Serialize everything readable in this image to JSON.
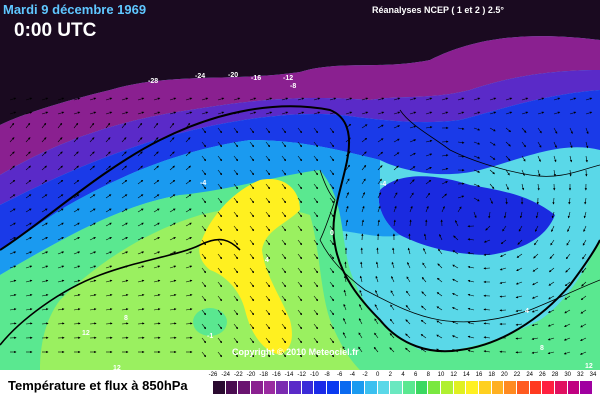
{
  "header": {
    "date": "Mardi 9 décembre 1969",
    "time": "0:00 UTC",
    "source": "Réanalyses NCEP ( 1 et 2 ) 2.5°"
  },
  "copyright": "Copyright © 2010 Meteociel.fr",
  "legend": {
    "title": "Température et flux à 850hPa",
    "ticks": [
      "-26",
      "-24",
      "-22",
      "-20",
      "-18",
      "-16",
      "-14",
      "-12",
      "-10",
      "-8",
      "-6",
      "-4",
      "-2",
      "0",
      "2",
      "4",
      "6",
      "8",
      "10",
      "12",
      "14",
      "16",
      "18",
      "20",
      "22",
      "24",
      "26",
      "28",
      "30",
      "32",
      "34"
    ],
    "colors": [
      "#2a0a30",
      "#4a0c50",
      "#6a1470",
      "#8a2090",
      "#9a2aa0",
      "#7a2ab0",
      "#5a2ac8",
      "#3a2ad8",
      "#1a2ae8",
      "#0a3af0",
      "#0a6af0",
      "#1a9af0",
      "#3ac0f0",
      "#5ad8e8",
      "#6ae8c0",
      "#5ae890",
      "#3ad860",
      "#7ae840",
      "#b0f030",
      "#e0f020",
      "#fff020",
      "#ffd020",
      "#ffb020",
      "#ff8a20",
      "#ff5a20",
      "#ff3a20",
      "#ff2040",
      "#e01060",
      "#c00080",
      "#a000a0"
    ]
  },
  "map_labels": [
    "-28",
    "-24",
    "-20",
    "-16",
    "-12",
    "-8",
    "-4",
    "-4",
    "0",
    "4",
    "8",
    "-1",
    "12",
    "12",
    "8",
    "4",
    "12"
  ],
  "colors": {
    "deep_purple": "#2a0a30",
    "purple": "#8a2090",
    "blue": "#0a3af0",
    "cyan": "#3ac0f0",
    "green": "#5ae890",
    "yellow": "#fff020"
  }
}
